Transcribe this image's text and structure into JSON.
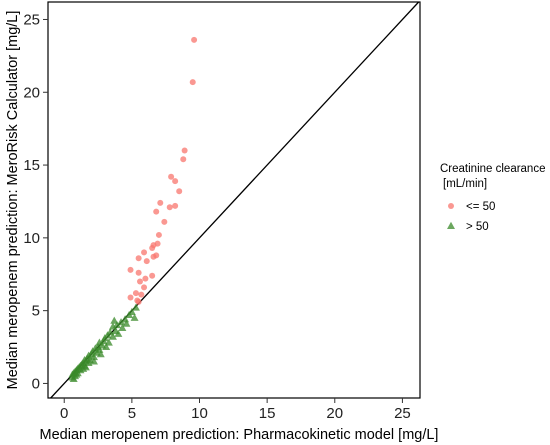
{
  "chart_data": {
    "type": "scatter",
    "xlabel": "Median meropenem prediction: Pharmacokinetic model [mg/L]",
    "ylabel": "Median meropenem prediction: MeroRisk Calculator [mg/L]",
    "xlim": [
      -1.2,
      26.3
    ],
    "ylim": [
      -1.0,
      26.2
    ],
    "x_ticks": [
      0,
      5,
      10,
      15,
      20,
      25
    ],
    "y_ticks": [
      0,
      5,
      10,
      15,
      20,
      25
    ],
    "identity_line": true,
    "grid": false,
    "legend": {
      "title": [
        "Creatinine clearance",
        "[mL/min]"
      ],
      "placement": "right"
    },
    "series": [
      {
        "name": "<= 50",
        "marker": "circle",
        "color": "#f8766d",
        "points": [
          [
            9.6,
            23.6
          ],
          [
            9.5,
            20.7
          ],
          [
            8.9,
            16.0
          ],
          [
            8.8,
            15.4
          ],
          [
            7.9,
            14.2
          ],
          [
            8.2,
            13.9
          ],
          [
            8.5,
            13.2
          ],
          [
            7.1,
            12.4
          ],
          [
            7.8,
            12.1
          ],
          [
            8.2,
            12.2
          ],
          [
            6.8,
            11.8
          ],
          [
            7.4,
            11.1
          ],
          [
            7.0,
            10.2
          ],
          [
            6.9,
            9.6
          ],
          [
            6.6,
            9.5
          ],
          [
            6.5,
            9.3
          ],
          [
            5.9,
            9.0
          ],
          [
            6.8,
            8.8
          ],
          [
            6.6,
            8.7
          ],
          [
            5.5,
            8.6
          ],
          [
            6.1,
            8.4
          ],
          [
            4.9,
            7.8
          ],
          [
            5.5,
            7.6
          ],
          [
            6.5,
            7.4
          ],
          [
            6.0,
            7.2
          ],
          [
            5.6,
            7.0
          ],
          [
            5.9,
            6.6
          ],
          [
            5.3,
            6.2
          ],
          [
            5.7,
            6.1
          ],
          [
            4.9,
            5.9
          ],
          [
            5.4,
            5.7
          ],
          [
            5.5,
            5.6
          ]
        ]
      },
      {
        "name": "> 50",
        "marker": "triangle",
        "color": "#3a8a2a",
        "points": [
          [
            5.3,
            5.2
          ],
          [
            5.0,
            4.9
          ],
          [
            4.8,
            4.7
          ],
          [
            5.2,
            4.5
          ],
          [
            4.5,
            4.4
          ],
          [
            4.2,
            4.2
          ],
          [
            3.9,
            4.0
          ],
          [
            4.3,
            3.8
          ],
          [
            3.6,
            3.9
          ],
          [
            3.8,
            3.6
          ],
          [
            3.4,
            3.5
          ],
          [
            3.2,
            3.3
          ],
          [
            3.6,
            3.2
          ],
          [
            3.0,
            3.1
          ],
          [
            2.9,
            2.9
          ],
          [
            3.3,
            2.8
          ],
          [
            2.6,
            2.8
          ],
          [
            2.8,
            2.6
          ],
          [
            2.5,
            2.5
          ],
          [
            2.3,
            2.4
          ],
          [
            2.6,
            2.3
          ],
          [
            2.1,
            2.2
          ],
          [
            2.4,
            2.1
          ],
          [
            2.0,
            2.0
          ],
          [
            1.8,
            1.9
          ],
          [
            2.2,
            1.8
          ],
          [
            1.7,
            1.7
          ],
          [
            1.9,
            1.6
          ],
          [
            1.5,
            1.6
          ],
          [
            1.6,
            1.5
          ],
          [
            1.4,
            1.4
          ],
          [
            1.8,
            1.4
          ],
          [
            1.3,
            1.3
          ],
          [
            1.5,
            1.2
          ],
          [
            1.2,
            1.2
          ],
          [
            1.1,
            1.1
          ],
          [
            1.4,
            1.0
          ],
          [
            1.0,
            1.0
          ],
          [
            0.9,
            0.9
          ],
          [
            1.2,
            0.9
          ],
          [
            0.8,
            0.8
          ],
          [
            1.0,
            0.7
          ],
          [
            0.7,
            0.7
          ],
          [
            0.9,
            0.6
          ],
          [
            0.6,
            0.6
          ],
          [
            0.8,
            0.5
          ],
          [
            0.6,
            0.4
          ],
          [
            0.7,
            0.3
          ],
          [
            4.6,
            4.1
          ],
          [
            4.0,
            3.4
          ],
          [
            3.1,
            2.5
          ],
          [
            2.7,
            2.0
          ],
          [
            2.2,
            1.5
          ],
          [
            1.6,
            1.1
          ],
          [
            3.7,
            4.3
          ]
        ]
      }
    ]
  }
}
